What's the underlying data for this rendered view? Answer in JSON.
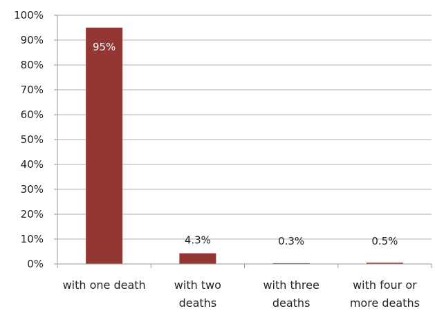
{
  "chart_data": {
    "type": "bar",
    "categories": [
      [
        "with one death"
      ],
      [
        "with two",
        "deaths"
      ],
      [
        "with three",
        "deaths"
      ],
      [
        "with four or",
        "more deaths"
      ]
    ],
    "values": [
      95,
      4.3,
      0.3,
      0.5
    ],
    "data_labels": [
      "95%",
      "4.3%",
      "0.3%",
      "0.5%"
    ],
    "ylim": [
      0,
      100
    ],
    "y_ticks": [
      "0%",
      "10%",
      "20%",
      "30%",
      "40%",
      "50%",
      "60%",
      "70%",
      "80%",
      "90%",
      "100%"
    ],
    "grid": true,
    "legend": "none",
    "colors": {
      "bar": "#943634",
      "grid": "#b0b0b0",
      "axis": "#9a9a9a",
      "label_inside": "#ffffff",
      "label_outside": "#222222"
    }
  }
}
